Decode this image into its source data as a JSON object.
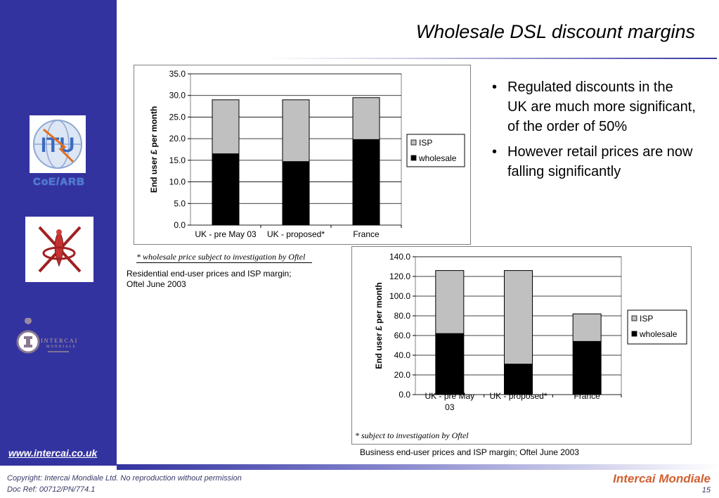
{
  "slide": {
    "title": "Wholesale DSL discount margins",
    "website": "www.intercai.co.uk",
    "copyright": "Copyright: Intercai Mondiale Ltd. No reproduction without permission",
    "doc_ref": "Doc Ref: 00712/PN/774.1",
    "brand": "Intercai Mondiale",
    "page_number": "15",
    "itu_label": "CoE/ARB",
    "intercai_logo_word": "INTERCAI",
    "intercai_logo_sub": "MONDIALE"
  },
  "bullets": [
    "Regulated discounts in the UK are much more significant, of the order of 50%",
    "However retail prices are now falling significantly"
  ],
  "captions": {
    "chart1": "Residential end-user prices and ISP margin; Oftel June 2003",
    "chart2": "Business end-user prices and ISP margin; Oftel June 2003",
    "note1": "* wholesale price subject to investigation by Oftel",
    "note2": "* subject to investigation by Oftel"
  },
  "colors": {
    "sidebar": "#3333a0",
    "wholesale": "#000000",
    "isp": "#c0c0c0",
    "brand": "#d06030"
  },
  "chart_data": [
    {
      "type": "bar",
      "stacked": true,
      "ylabel": "End user £ per month",
      "ylim": [
        0,
        35
      ],
      "yticks": [
        "0.0",
        "5.0",
        "10.0",
        "15.0",
        "20.0",
        "25.0",
        "30.0",
        "35.0"
      ],
      "categories": [
        "UK - pre May 03",
        "UK - proposed*",
        "France"
      ],
      "series": [
        {
          "name": "wholesale",
          "values": [
            16.5,
            14.7,
            19.8
          ]
        },
        {
          "name": "ISP",
          "values": [
            12.5,
            14.3,
            9.7
          ]
        }
      ],
      "legend": [
        "ISP",
        "wholesale"
      ],
      "legend_position": "right",
      "grid": true
    },
    {
      "type": "bar",
      "stacked": true,
      "ylabel": "End user £ per month",
      "ylim": [
        0,
        140
      ],
      "yticks": [
        "0.0",
        "20.0",
        "40.0",
        "60.0",
        "80.0",
        "100.0",
        "120.0",
        "140.0"
      ],
      "categories": [
        "UK - pre May 03",
        "UK - proposed*",
        "France"
      ],
      "series": [
        {
          "name": "wholesale",
          "values": [
            62,
            31,
            54
          ]
        },
        {
          "name": "ISP",
          "values": [
            64,
            95,
            28
          ]
        }
      ],
      "legend": [
        "ISP",
        "wholesale"
      ],
      "legend_position": "right",
      "grid": true
    }
  ]
}
